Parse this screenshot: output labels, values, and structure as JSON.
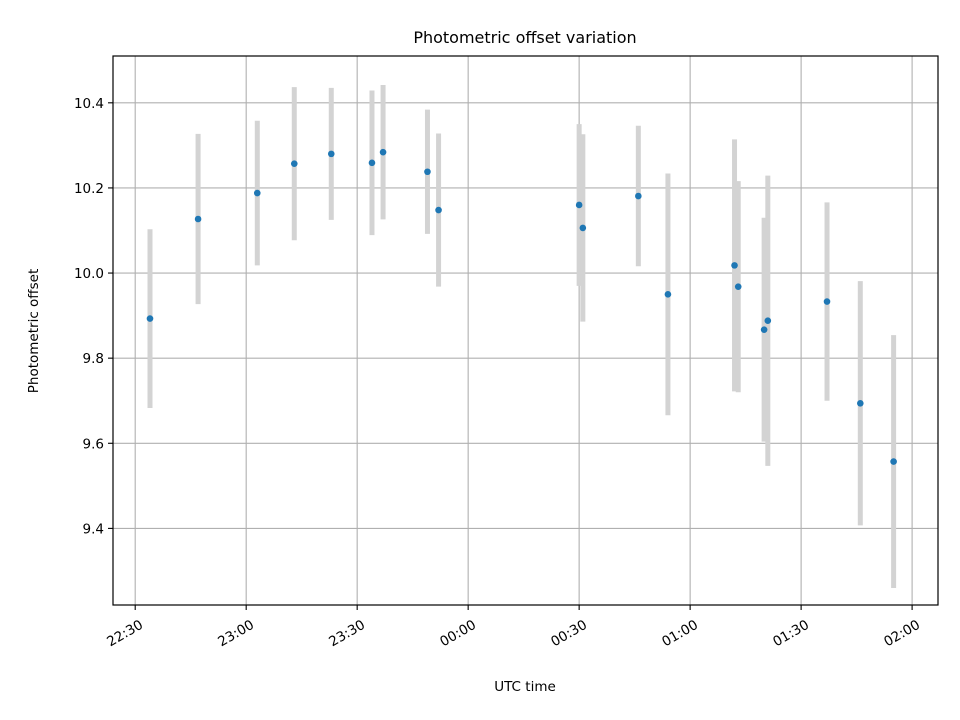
{
  "chart_data": {
    "type": "scatter",
    "title": "Photometric offset variation",
    "xlabel": "UTC time",
    "ylabel": "Photometric offset",
    "x_tick_labels": [
      "22:30",
      "23:00",
      "23:30",
      "00:00",
      "00:30",
      "01:00",
      "01:30",
      "02:00"
    ],
    "y_tick_labels": [
      "9.4",
      "9.6",
      "9.8",
      "10.0",
      "10.2",
      "10.4"
    ],
    "y_ticks": [
      9.4,
      9.6,
      9.8,
      10.0,
      10.2,
      10.4
    ],
    "xlim": [
      "22:24",
      "02:07"
    ],
    "ylim": [
      9.22,
      10.51
    ],
    "grid": true,
    "marker_color": "#1f77b4",
    "errorbar_color": "#d3d3d3",
    "series": [
      {
        "points": [
          {
            "x": "22:34",
            "y": 9.893,
            "err": 0.21
          },
          {
            "x": "22:47",
            "y": 10.127,
            "err": 0.2
          },
          {
            "x": "23:03",
            "y": 10.188,
            "err": 0.17
          },
          {
            "x": "23:13",
            "y": 10.257,
            "err": 0.18
          },
          {
            "x": "23:23",
            "y": 10.28,
            "err": 0.155
          },
          {
            "x": "23:34",
            "y": 10.259,
            "err": 0.17
          },
          {
            "x": "23:37",
            "y": 10.284,
            "err": 0.158
          },
          {
            "x": "23:49",
            "y": 10.238,
            "err": 0.146
          },
          {
            "x": "23:52",
            "y": 10.148,
            "err": 0.18
          },
          {
            "x": "00:30",
            "y": 10.16,
            "err": 0.19
          },
          {
            "x": "00:31",
            "y": 10.106,
            "err": 0.22
          },
          {
            "x": "00:46",
            "y": 10.181,
            "err": 0.165
          },
          {
            "x": "00:54",
            "y": 9.95,
            "err": 0.284
          },
          {
            "x": "01:12",
            "y": 10.018,
            "err": 0.296
          },
          {
            "x": "01:13",
            "y": 9.968,
            "err": 0.248
          },
          {
            "x": "01:20",
            "y": 9.867,
            "err": 0.263
          },
          {
            "x": "01:21",
            "y": 9.888,
            "err": 0.341
          },
          {
            "x": "01:37",
            "y": 9.933,
            "err": 0.233
          },
          {
            "x": "01:46",
            "y": 9.694,
            "err": 0.287
          },
          {
            "x": "01:55",
            "y": 9.557,
            "err": 0.297
          }
        ]
      }
    ]
  }
}
